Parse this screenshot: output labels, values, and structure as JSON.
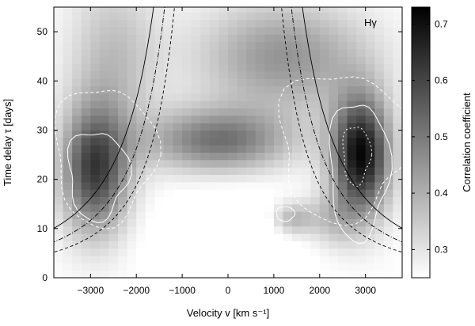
{
  "chart_data": {
    "type": "heatmap",
    "panel_label": "Hγ",
    "xlabel": "Velocity v [km s⁻¹]",
    "ylabel": "Time delay τ [days]",
    "colorbar_label": "Correlation coefficient",
    "xlim": [
      -3800,
      3800
    ],
    "ylim": [
      0,
      55
    ],
    "xticks": [
      -3000,
      -2000,
      -1000,
      0,
      1000,
      2000,
      3000
    ],
    "xtick_labels": [
      "−3000",
      "−2000",
      "−1000",
      "0",
      "1000",
      "2000",
      "3000"
    ],
    "yticks": [
      0,
      10,
      20,
      30,
      40,
      50
    ],
    "ytick_labels": [
      "0",
      "10",
      "20",
      "30",
      "40",
      "50"
    ],
    "colorbar_range": [
      0.25,
      0.73
    ],
    "colorbar_ticks": [
      0.3,
      0.4,
      0.5,
      0.6,
      0.7
    ],
    "colorbar_tick_labels": [
      "0.3",
      "0.4",
      "0.5",
      "0.6",
      "0.7"
    ],
    "colormap": "white-to-black grayscale",
    "features": [
      {
        "kind": "peak",
        "v_center": -2900,
        "tau_center": 22,
        "max_correlation": 0.65
      },
      {
        "kind": "peak",
        "v_center": 2900,
        "tau_center": 25,
        "max_correlation": 0.73
      },
      {
        "kind": "ridge",
        "v_range": [
          -1800,
          1800
        ],
        "tau_center": 28,
        "max_correlation": 0.5
      }
    ],
    "virial_curves": [
      {
        "style": "solid",
        "note": "tau proportional to v^-2"
      },
      {
        "style": "dash-dot",
        "note": "tau proportional to v^-2"
      },
      {
        "style": "dashed",
        "note": "tau proportional to v^-2"
      }
    ],
    "grid": false
  }
}
